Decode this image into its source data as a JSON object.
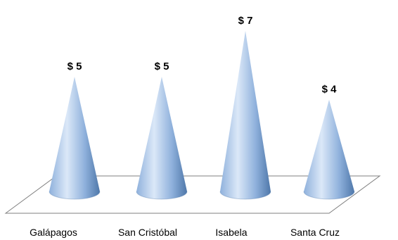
{
  "chart_data": {
    "type": "bar",
    "categories": [
      "Galápagos",
      "San Cristóbal",
      "Isabela",
      "Santa Cruz"
    ],
    "values": [
      5,
      5,
      7,
      4
    ],
    "value_labels": [
      "$ 5",
      "$ 5",
      "$ 7",
      "$ 4"
    ],
    "ylim": [
      0,
      8
    ],
    "grid": false,
    "legend": "none",
    "title": "",
    "xlabel": "",
    "ylabel": "",
    "colors": {
      "cone_light": "#dbe8f8",
      "cone_mid": "#8fb1dc",
      "cone_dark": "#4f78aa",
      "floor_stroke": "#7f7f7f",
      "text": "#000000"
    }
  }
}
